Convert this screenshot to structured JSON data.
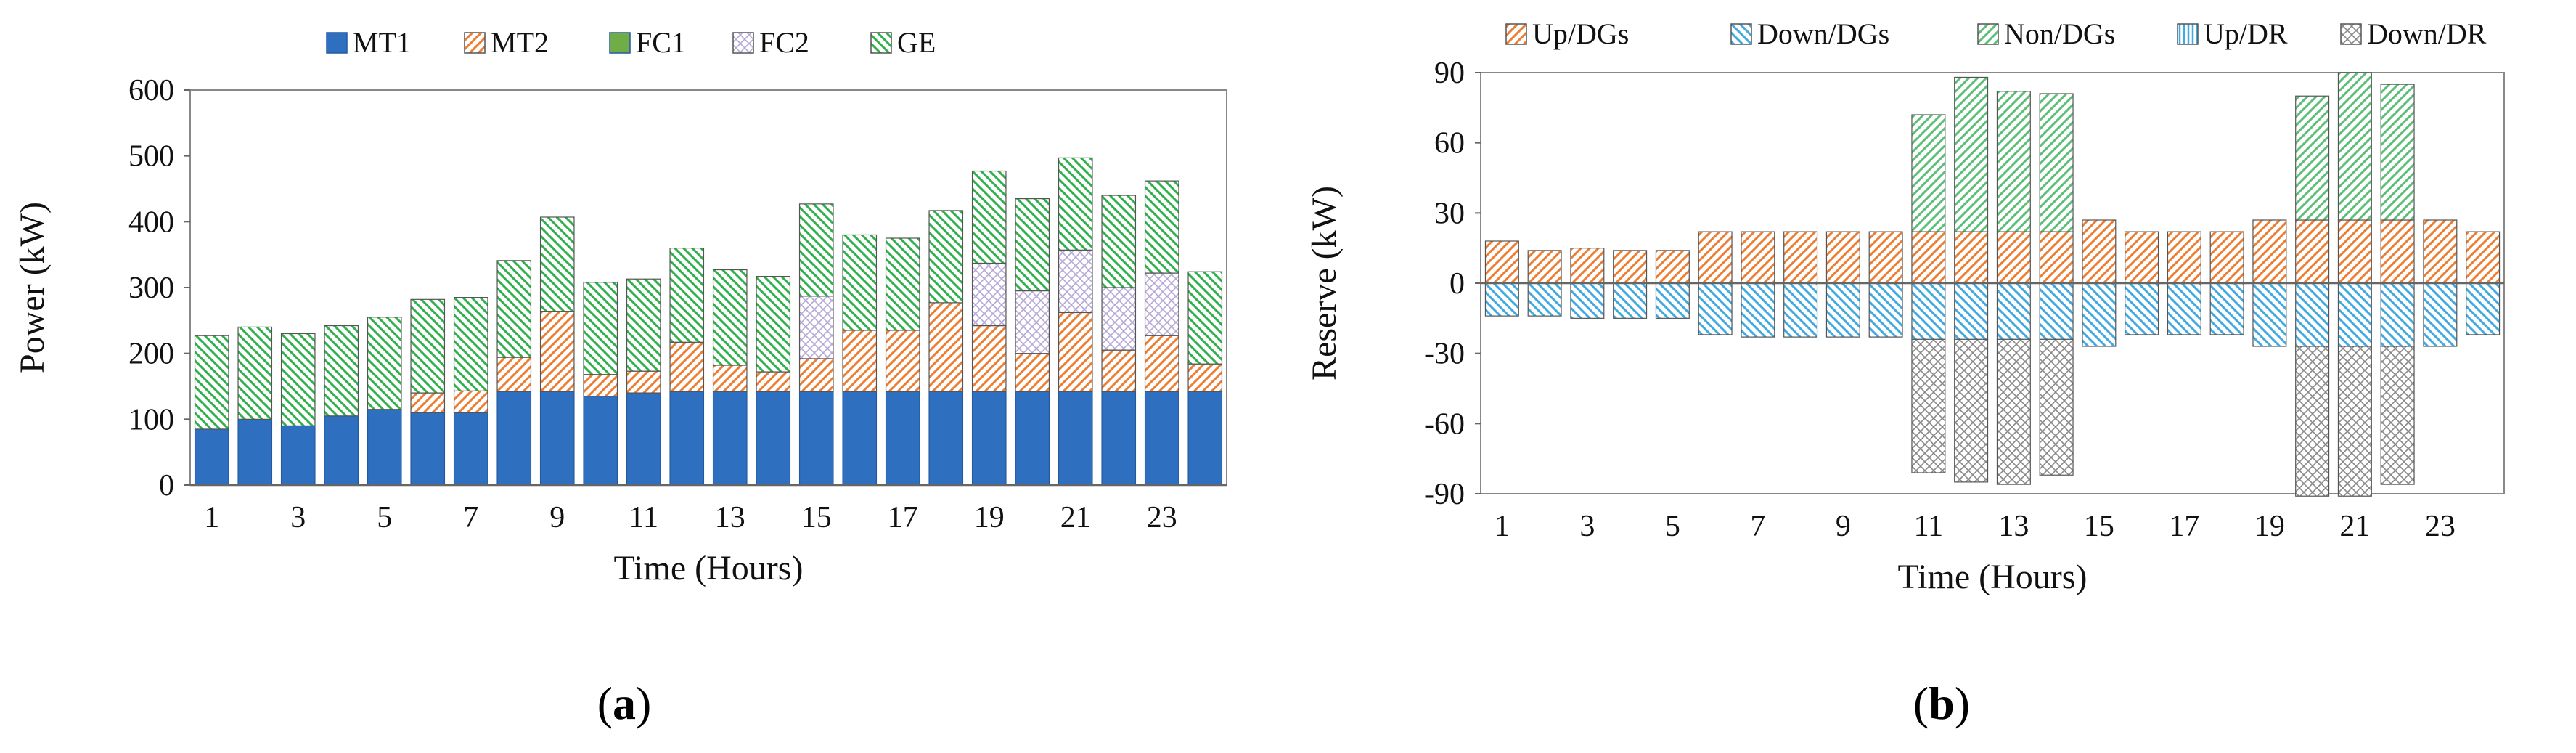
{
  "chart_data": [
    {
      "type": "bar",
      "stacked": true,
      "caption": "a",
      "title": "",
      "xlabel": "Time (Hours)",
      "ylabel": "Power (kW)",
      "ylim": [
        0,
        600
      ],
      "yticks": [
        0,
        100,
        200,
        300,
        400,
        500,
        600
      ],
      "categories": [
        1,
        2,
        3,
        4,
        5,
        6,
        7,
        8,
        9,
        10,
        11,
        12,
        13,
        14,
        15,
        16,
        17,
        18,
        19,
        20,
        21,
        22,
        23,
        24
      ],
      "xtick_labels": [
        "1",
        "3",
        "5",
        "7",
        "9",
        "11",
        "13",
        "15",
        "17",
        "19",
        "21",
        "23"
      ],
      "legend_position": "top",
      "series": [
        {
          "name": "MT1",
          "color": "#2e6fc0",
          "pattern": "solid",
          "values": [
            85,
            100,
            90,
            105,
            115,
            110,
            110,
            142,
            142,
            135,
            140,
            142,
            142,
            142,
            142,
            142,
            142,
            142,
            142,
            142,
            142,
            142,
            142,
            142
          ]
        },
        {
          "name": "MT2",
          "color": "#ed7d31",
          "pattern": "hatch-fwd",
          "values": [
            0,
            0,
            0,
            0,
            0,
            30,
            33,
            52,
            122,
            33,
            33,
            75,
            40,
            30,
            50,
            93,
            93,
            135,
            100,
            58,
            120,
            63,
            85,
            42
          ]
        },
        {
          "name": "FC1",
          "color": "#70ad47",
          "pattern": "solid",
          "values": [
            0,
            0,
            0,
            0,
            0,
            0,
            0,
            0,
            0,
            0,
            0,
            0,
            0,
            0,
            0,
            0,
            0,
            0,
            0,
            0,
            0,
            0,
            0,
            0
          ]
        },
        {
          "name": "FC2",
          "color": "#b4a7d6",
          "pattern": "cross",
          "values": [
            0,
            0,
            0,
            0,
            0,
            0,
            0,
            0,
            0,
            0,
            0,
            0,
            0,
            0,
            95,
            0,
            0,
            0,
            95,
            95,
            95,
            95,
            95,
            0
          ]
        },
        {
          "name": "GE",
          "color": "#2eb04a",
          "pattern": "hatch-back",
          "values": [
            142,
            140,
            140,
            137,
            140,
            142,
            142,
            147,
            143,
            140,
            140,
            143,
            145,
            145,
            140,
            145,
            140,
            140,
            140,
            140,
            140,
            140,
            140,
            140
          ]
        }
      ]
    },
    {
      "type": "bar",
      "stacked": true,
      "caption": "b",
      "title": "",
      "xlabel": "Time (Hours)",
      "ylabel": "Reserve (kW)",
      "ylim": [
        -90,
        90
      ],
      "yticks": [
        -90,
        -60,
        -30,
        0,
        30,
        60,
        90
      ],
      "categories": [
        1,
        2,
        3,
        4,
        5,
        6,
        7,
        8,
        9,
        10,
        11,
        12,
        13,
        14,
        15,
        16,
        17,
        18,
        19,
        20,
        21,
        22,
        23,
        24
      ],
      "xtick_labels": [
        "1",
        "3",
        "5",
        "7",
        "9",
        "11",
        "13",
        "15",
        "17",
        "19",
        "21",
        "23"
      ],
      "legend_position": "top",
      "series": [
        {
          "name": "Up/DGs",
          "color": "#ed7d31",
          "pattern": "hatch-fwd",
          "values": [
            18,
            14,
            15,
            14,
            14,
            22,
            22,
            22,
            22,
            22,
            22,
            22,
            22,
            22,
            27,
            22,
            22,
            22,
            27,
            27,
            27,
            27,
            27,
            22
          ]
        },
        {
          "name": "Down/DGs",
          "color": "#3fa9e0",
          "pattern": "hatch-back",
          "values": [
            -14,
            -14,
            -15,
            -15,
            -15,
            -22,
            -23,
            -23,
            -23,
            -23,
            -24,
            -24,
            -24,
            -24,
            -27,
            -22,
            -22,
            -22,
            -27,
            -27,
            -27,
            -27,
            -27,
            -22
          ]
        },
        {
          "name": "Non/DGs",
          "color": "#5cbf78",
          "pattern": "hatch-fwd",
          "values": [
            0,
            0,
            0,
            0,
            0,
            0,
            0,
            0,
            0,
            0,
            50,
            66,
            60,
            59,
            0,
            0,
            0,
            0,
            0,
            53,
            63,
            58,
            0,
            0
          ]
        },
        {
          "name": "Up/DR",
          "color": "#3fa9e0",
          "pattern": "hatch-vert",
          "values": [
            0,
            0,
            0,
            0,
            0,
            0,
            0,
            0,
            0,
            0,
            0,
            0,
            0,
            0,
            0,
            0,
            0,
            0,
            0,
            0,
            0,
            0,
            0,
            0
          ]
        },
        {
          "name": "Down/DR",
          "color": "#888888",
          "pattern": "cross",
          "values": [
            0,
            0,
            0,
            0,
            0,
            0,
            0,
            0,
            0,
            0,
            -57,
            -61,
            -62,
            -58,
            0,
            0,
            0,
            0,
            0,
            -64,
            -64,
            -59,
            0,
            0
          ]
        }
      ]
    }
  ]
}
